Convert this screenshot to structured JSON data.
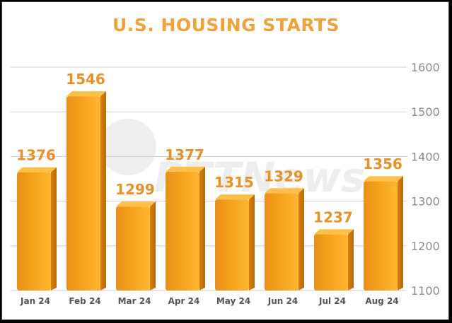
{
  "colors": {
    "title": "#f0a23a",
    "bar_front": "#f6a21b",
    "bar_top": "#ffc04a",
    "value_label": "#e8912a",
    "grid": "#cfcfcf",
    "tick": "#8c8c8c"
  },
  "watermark": {
    "text": "RTTNews"
  },
  "chart_data": {
    "type": "bar",
    "title": "U.S. HOUSING STARTS",
    "categories": [
      "Jan 24",
      "Feb 24",
      "Mar 24",
      "Apr 24",
      "May 24",
      "Jun 24",
      "Jul 24",
      "Aug 24"
    ],
    "values": [
      1376,
      1546,
      1299,
      1377,
      1315,
      1329,
      1237,
      1356
    ],
    "value_labels": [
      "1376",
      "1546",
      "1299",
      "1377",
      "1315",
      "1329",
      "1237",
      "1356"
    ],
    "ylim": [
      1100,
      1600
    ],
    "yticks": [
      1100,
      1200,
      1300,
      1400,
      1500,
      1600
    ],
    "ytick_labels": [
      "1100",
      "1200",
      "1300",
      "1400",
      "1500",
      "1600"
    ],
    "y_axis_side": "right",
    "grid": true,
    "xlabel": "",
    "ylabel": ""
  }
}
